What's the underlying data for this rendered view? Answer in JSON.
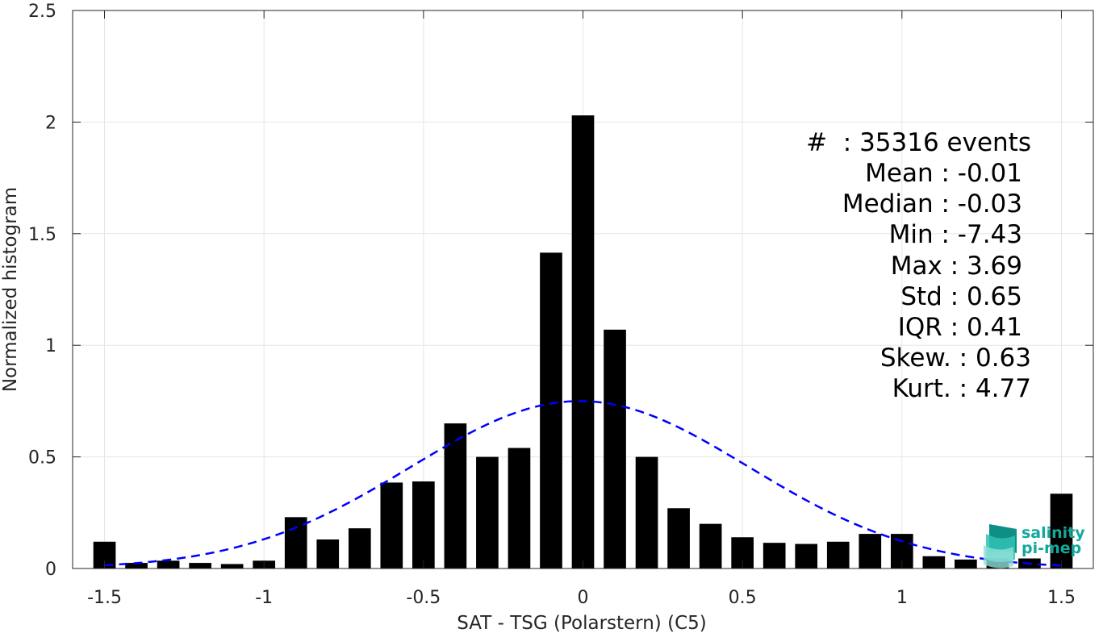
{
  "chart_data": {
    "type": "bar",
    "xlabel": "SAT - TSG (Polarstern) (C5)",
    "ylabel": "Normalized histogram",
    "xlim": [
      -1.6,
      1.6
    ],
    "ylim": [
      0,
      2.5
    ],
    "grid": true,
    "x_ticks": [
      -1.5,
      -1,
      -0.5,
      0,
      0.5,
      1,
      1.5
    ],
    "x_tick_labels": [
      "-1.5",
      "-1",
      "-0.5",
      "0",
      "0.5",
      "1",
      "1.5"
    ],
    "y_ticks": [
      0,
      0.5,
      1,
      1.5,
      2,
      2.5
    ],
    "y_tick_labels": [
      "0",
      "0.5",
      "1",
      "1.5",
      "2",
      "2.5"
    ],
    "bar_color": "#000000",
    "bar_width": 0.07,
    "bins": [
      {
        "x": -1.5,
        "value": 0.12
      },
      {
        "x": -1.4,
        "value": 0.025
      },
      {
        "x": -1.3,
        "value": 0.035
      },
      {
        "x": -1.2,
        "value": 0.025
      },
      {
        "x": -1.1,
        "value": 0.02
      },
      {
        "x": -1.0,
        "value": 0.035
      },
      {
        "x": -0.9,
        "value": 0.23
      },
      {
        "x": -0.8,
        "value": 0.13
      },
      {
        "x": -0.7,
        "value": 0.18
      },
      {
        "x": -0.6,
        "value": 0.385
      },
      {
        "x": -0.5,
        "value": 0.39
      },
      {
        "x": -0.4,
        "value": 0.65
      },
      {
        "x": -0.3,
        "value": 0.5
      },
      {
        "x": -0.2,
        "value": 0.54
      },
      {
        "x": -0.1,
        "value": 1.415
      },
      {
        "x": 0.0,
        "value": 2.03
      },
      {
        "x": 0.1,
        "value": 1.07
      },
      {
        "x": 0.2,
        "value": 0.5
      },
      {
        "x": 0.3,
        "value": 0.27
      },
      {
        "x": 0.4,
        "value": 0.2
      },
      {
        "x": 0.5,
        "value": 0.14
      },
      {
        "x": 0.6,
        "value": 0.115
      },
      {
        "x": 0.7,
        "value": 0.11
      },
      {
        "x": 0.8,
        "value": 0.12
      },
      {
        "x": 0.9,
        "value": 0.155
      },
      {
        "x": 1.0,
        "value": 0.155
      },
      {
        "x": 1.1,
        "value": 0.055
      },
      {
        "x": 1.2,
        "value": 0.04
      },
      {
        "x": 1.3,
        "value": 0.045
      },
      {
        "x": 1.4,
        "value": 0.045
      },
      {
        "x": 1.5,
        "value": 0.335
      }
    ],
    "fit_curve": {
      "style": "dashed",
      "color": "#0000ff",
      "type": "gaussian",
      "mean": -0.01,
      "std": 0.53,
      "peak": 0.75,
      "x_range": [
        -1.5,
        1.5
      ]
    },
    "stats": [
      "#  : 35316 events",
      "Mean : -0.01",
      "Median : -0.03",
      "Min : -7.43",
      "Max : 3.69",
      "Std : 0.65",
      "IQR : 0.41",
      "Skew. : 0.63",
      "Kurt. : 4.77"
    ]
  },
  "logo": {
    "line1": "salinity",
    "line2": "pi-mep",
    "color": "#13a89e"
  }
}
